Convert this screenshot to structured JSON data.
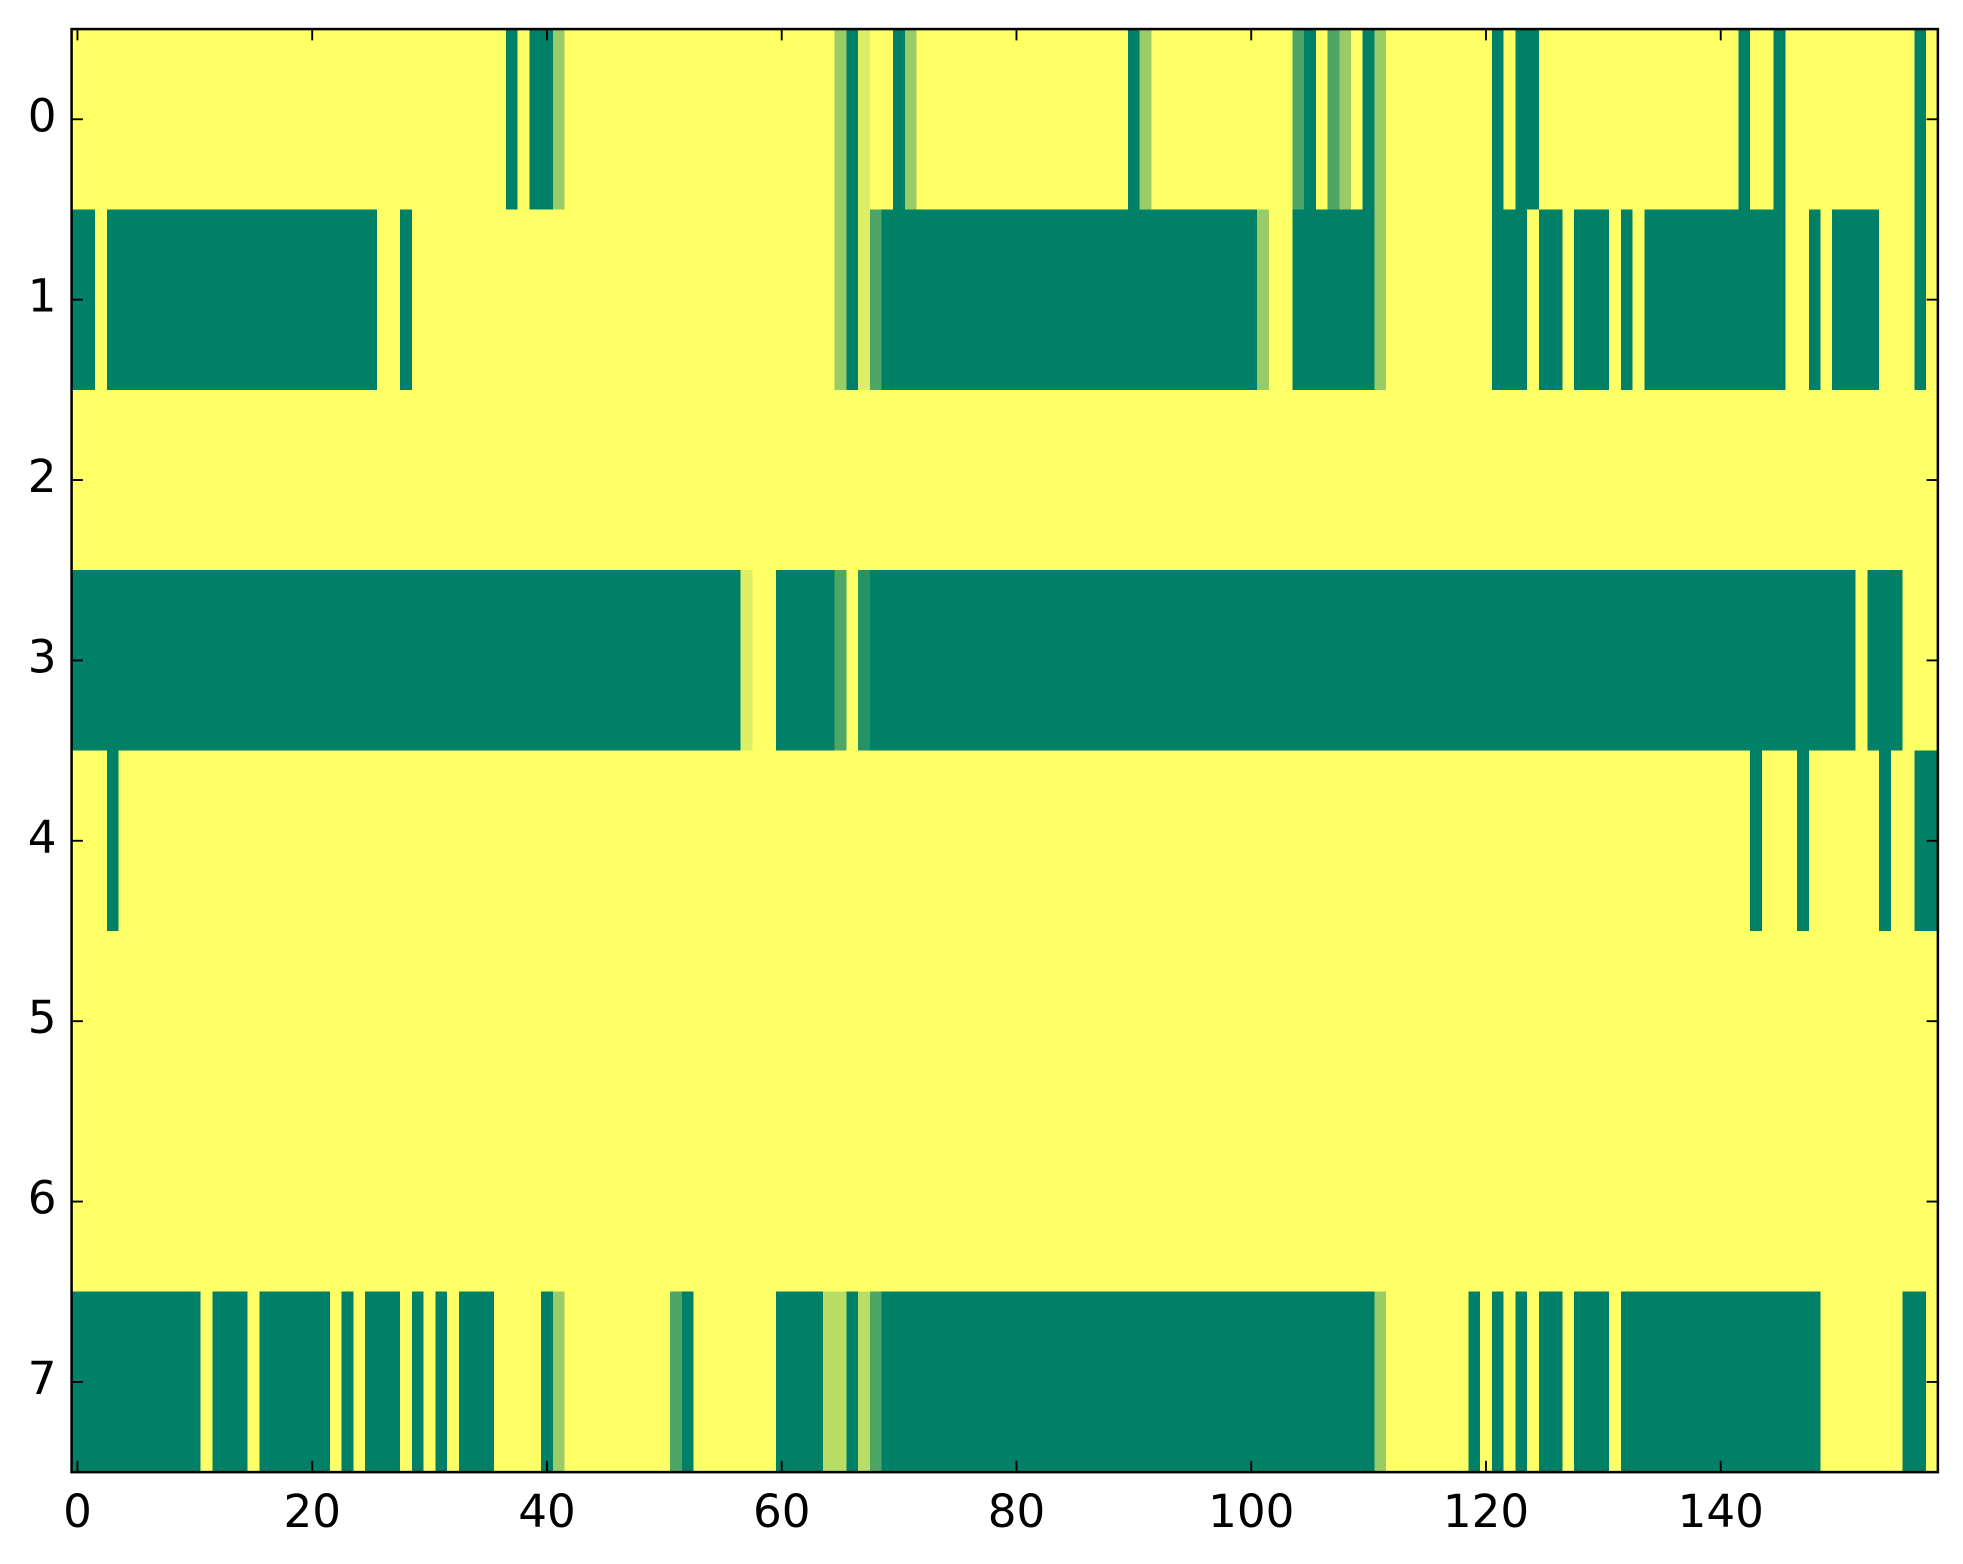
{
  "chart_data": {
    "type": "heatmap",
    "colormap": "summer",
    "xlim": [
      -0.5,
      158.5
    ],
    "ylim": [
      7.5,
      -0.5
    ],
    "xticks": [
      0,
      20,
      40,
      60,
      80,
      100,
      120,
      140
    ],
    "yticks": [
      0,
      1,
      2,
      3,
      4,
      5,
      6,
      7
    ],
    "z": [
      [
        1,
        1,
        1,
        1,
        1,
        1,
        1,
        1,
        1,
        1,
        1,
        1,
        1,
        1,
        1,
        1,
        1,
        1,
        1,
        1,
        1,
        1,
        1,
        1,
        1,
        1,
        1,
        1,
        1,
        1,
        1,
        1,
        1,
        1,
        1,
        1,
        1,
        0,
        1,
        0,
        0,
        0.6,
        1,
        1,
        1,
        1,
        1,
        1,
        1,
        1,
        1,
        1,
        1,
        1,
        1,
        1,
        1,
        1,
        1,
        1,
        1,
        1,
        1,
        1,
        1,
        0.6,
        0,
        0.87,
        1,
        1,
        0,
        0.6,
        1,
        1,
        1,
        1,
        1,
        1,
        1,
        1,
        1,
        1,
        1,
        1,
        1,
        1,
        1,
        1,
        1,
        1,
        0,
        0.6,
        1,
        1,
        1,
        1,
        1,
        1,
        1,
        1,
        1,
        1,
        1,
        1,
        0.3,
        0,
        1,
        0.3,
        0.6,
        1,
        0,
        0.6,
        1,
        1,
        1,
        1,
        1,
        1,
        1,
        1,
        1,
        0,
        1,
        0,
        0,
        1,
        1,
        1,
        1,
        1,
        1,
        1,
        1,
        1,
        1,
        1,
        1,
        1,
        1,
        1,
        1,
        1,
        0,
        1,
        1,
        0,
        1,
        1,
        1,
        1,
        1,
        1,
        1,
        1,
        1,
        1,
        1,
        0,
        1
      ],
      [
        0,
        0,
        1,
        0,
        0,
        0,
        0,
        0,
        0,
        0,
        0,
        0,
        0,
        0,
        0,
        0,
        0,
        0,
        0,
        0,
        0,
        0,
        0,
        0,
        0,
        0,
        1,
        1,
        0,
        1,
        1,
        1,
        1,
        1,
        1,
        1,
        1,
        1,
        1,
        1,
        1,
        1,
        1,
        1,
        1,
        1,
        1,
        1,
        1,
        1,
        1,
        1,
        1,
        1,
        1,
        1,
        1,
        1,
        1,
        1,
        1,
        1,
        1,
        1,
        1,
        0.6,
        0,
        0.87,
        0.3,
        0,
        0,
        0,
        0,
        0,
        0,
        0,
        0,
        0,
        0,
        0,
        0,
        0,
        0,
        0,
        0,
        0,
        0,
        0,
        0,
        0,
        0,
        0,
        0,
        0,
        0,
        0,
        0,
        0,
        0,
        0,
        0,
        0.6,
        1,
        1,
        0,
        0,
        0,
        0,
        0,
        0,
        0,
        0.6,
        1,
        1,
        1,
        1,
        1,
        1,
        1,
        1,
        1,
        0,
        0,
        0,
        1,
        0,
        0,
        1,
        0,
        0,
        0,
        1,
        0,
        1,
        0,
        0,
        0,
        0,
        0,
        0,
        0,
        0,
        0,
        0,
        0,
        0,
        1,
        1,
        0,
        1,
        0,
        0,
        0,
        0,
        1,
        1,
        1,
        0,
        1
      ],
      [
        1,
        1,
        1,
        1,
        1,
        1,
        1,
        1,
        1,
        1,
        1,
        1,
        1,
        1,
        1,
        1,
        1,
        1,
        1,
        1,
        1,
        1,
        1,
        1,
        1,
        1,
        1,
        1,
        1,
        1,
        1,
        1,
        1,
        1,
        1,
        1,
        1,
        1,
        1,
        1,
        1,
        1,
        1,
        1,
        1,
        1,
        1,
        1,
        1,
        1,
        1,
        1,
        1,
        1,
        1,
        1,
        1,
        1,
        1,
        1,
        1,
        1,
        1,
        1,
        1,
        1,
        1,
        1,
        1,
        1,
        1,
        1,
        1,
        1,
        1,
        1,
        1,
        1,
        1,
        1,
        1,
        1,
        1,
        1,
        1,
        1,
        1,
        1,
        1,
        1,
        1,
        1,
        1,
        1,
        1,
        1,
        1,
        1,
        1,
        1,
        1,
        1,
        1,
        1,
        1,
        1,
        1,
        1,
        1,
        1,
        1,
        1,
        1,
        1,
        1,
        1,
        1,
        1,
        1,
        1,
        1,
        1,
        1,
        1,
        1,
        1,
        1,
        1,
        1,
        1,
        1,
        1,
        1,
        1,
        1,
        1,
        1,
        1,
        1,
        1,
        1,
        1,
        1,
        1,
        1,
        1,
        1,
        1,
        1,
        1,
        1,
        1,
        1,
        1,
        1,
        1,
        1,
        1,
        1
      ],
      [
        0,
        0,
        0,
        0,
        0,
        0,
        0,
        0,
        0,
        0,
        0,
        0,
        0,
        0,
        0,
        0,
        0,
        0,
        0,
        0,
        0,
        0,
        0,
        0,
        0,
        0,
        0,
        0,
        0,
        0,
        0,
        0,
        0,
        0,
        0,
        0,
        0,
        0,
        0,
        0,
        0,
        0,
        0,
        0,
        0,
        0,
        0,
        0,
        0,
        0,
        0,
        0,
        0,
        0,
        0,
        0,
        0,
        0.87,
        1,
        1,
        0,
        0,
        0,
        0,
        0,
        0.3,
        1,
        0.15,
        0,
        0,
        0,
        0,
        0,
        0,
        0,
        0,
        0,
        0,
        0,
        0,
        0,
        0,
        0,
        0,
        0,
        0,
        0,
        0,
        0,
        0,
        0,
        0,
        0,
        0,
        0,
        0,
        0,
        0,
        0,
        0,
        0,
        0,
        0,
        0,
        0,
        0,
        0,
        0,
        0,
        0,
        0,
        0,
        0,
        0,
        0,
        0,
        0,
        0,
        0,
        0,
        0,
        0,
        0,
        0,
        0,
        0,
        0,
        0,
        0,
        0,
        0,
        0,
        0,
        0,
        0,
        0,
        0,
        0,
        0,
        0,
        0,
        0,
        0,
        0,
        0,
        0,
        0,
        0,
        0,
        0,
        0,
        0,
        1,
        0,
        0,
        0,
        1,
        1,
        1
      ],
      [
        1,
        1,
        1,
        0,
        1,
        1,
        1,
        1,
        1,
        1,
        1,
        1,
        1,
        1,
        1,
        1,
        1,
        1,
        1,
        1,
        1,
        1,
        1,
        1,
        1,
        1,
        1,
        1,
        1,
        1,
        1,
        1,
        1,
        1,
        1,
        1,
        1,
        1,
        1,
        1,
        1,
        1,
        1,
        1,
        1,
        1,
        1,
        1,
        1,
        1,
        1,
        1,
        1,
        1,
        1,
        1,
        1,
        1,
        1,
        1,
        1,
        1,
        1,
        1,
        1,
        1,
        1,
        1,
        1,
        1,
        1,
        1,
        1,
        1,
        1,
        1,
        1,
        1,
        1,
        1,
        1,
        1,
        1,
        1,
        1,
        1,
        1,
        1,
        1,
        1,
        1,
        1,
        1,
        1,
        1,
        1,
        1,
        1,
        1,
        1,
        1,
        1,
        1,
        1,
        1,
        1,
        1,
        1,
        1,
        1,
        1,
        1,
        1,
        1,
        1,
        1,
        1,
        1,
        1,
        1,
        1,
        1,
        1,
        1,
        1,
        1,
        1,
        1,
        1,
        1,
        1,
        1,
        1,
        1,
        1,
        1,
        1,
        1,
        1,
        1,
        1,
        1,
        1,
        0,
        1,
        1,
        1,
        0,
        1,
        1,
        1,
        1,
        1,
        1,
        0,
        1,
        1,
        0,
        0
      ],
      [
        1,
        1,
        1,
        1,
        1,
        1,
        1,
        1,
        1,
        1,
        1,
        1,
        1,
        1,
        1,
        1,
        1,
        1,
        1,
        1,
        1,
        1,
        1,
        1,
        1,
        1,
        1,
        1,
        1,
        1,
        1,
        1,
        1,
        1,
        1,
        1,
        1,
        1,
        1,
        1,
        1,
        1,
        1,
        1,
        1,
        1,
        1,
        1,
        1,
        1,
        1,
        1,
        1,
        1,
        1,
        1,
        1,
        1,
        1,
        1,
        1,
        1,
        1,
        1,
        1,
        1,
        1,
        1,
        1,
        1,
        1,
        1,
        1,
        1,
        1,
        1,
        1,
        1,
        1,
        1,
        1,
        1,
        1,
        1,
        1,
        1,
        1,
        1,
        1,
        1,
        1,
        1,
        1,
        1,
        1,
        1,
        1,
        1,
        1,
        1,
        1,
        1,
        1,
        1,
        1,
        1,
        1,
        1,
        1,
        1,
        1,
        1,
        1,
        1,
        1,
        1,
        1,
        1,
        1,
        1,
        1,
        1,
        1,
        1,
        1,
        1,
        1,
        1,
        1,
        1,
        1,
        1,
        1,
        1,
        1,
        1,
        1,
        1,
        1,
        1,
        1,
        1,
        1,
        1,
        1,
        1,
        1,
        1,
        1,
        1,
        1,
        1,
        1,
        1,
        1,
        1,
        1,
        1,
        1
      ],
      [
        1,
        1,
        1,
        1,
        1,
        1,
        1,
        1,
        1,
        1,
        1,
        1,
        1,
        1,
        1,
        1,
        1,
        1,
        1,
        1,
        1,
        1,
        1,
        1,
        1,
        1,
        1,
        1,
        1,
        1,
        1,
        1,
        1,
        1,
        1,
        1,
        1,
        1,
        1,
        1,
        1,
        1,
        1,
        1,
        1,
        1,
        1,
        1,
        1,
        1,
        1,
        1,
        1,
        1,
        1,
        1,
        1,
        1,
        1,
        1,
        1,
        1,
        1,
        1,
        1,
        1,
        1,
        1,
        1,
        1,
        1,
        1,
        1,
        1,
        1,
        1,
        1,
        1,
        1,
        1,
        1,
        1,
        1,
        1,
        1,
        1,
        1,
        1,
        1,
        1,
        1,
        1,
        1,
        1,
        1,
        1,
        1,
        1,
        1,
        1,
        1,
        1,
        1,
        1,
        1,
        1,
        1,
        1,
        1,
        1,
        1,
        1,
        1,
        1,
        1,
        1,
        1,
        1,
        1,
        1,
        1,
        1,
        1,
        1,
        1,
        1,
        1,
        1,
        1,
        1,
        1,
        1,
        1,
        1,
        1,
        1,
        1,
        1,
        1,
        1,
        1,
        1,
        1,
        1,
        1,
        1,
        1,
        1,
        1,
        1,
        1,
        1,
        1,
        1,
        1,
        1,
        1,
        1,
        1
      ],
      [
        0,
        0,
        0,
        0,
        0,
        0,
        0,
        0,
        0,
        0,
        0,
        1,
        0,
        0,
        0,
        1,
        0,
        0,
        0,
        0,
        0,
        0,
        1,
        0,
        1,
        0,
        0,
        0,
        1,
        0,
        1,
        0,
        1,
        0,
        0,
        0,
        1,
        1,
        1,
        1,
        0,
        0.6,
        1,
        1,
        1,
        1,
        1,
        1,
        1,
        1,
        1,
        0.3,
        0,
        1,
        1,
        1,
        1,
        1,
        1,
        1,
        0,
        0,
        0,
        0,
        0.73,
        0.73,
        0,
        0.73,
        0.3,
        0,
        0,
        0,
        0,
        0,
        0,
        0,
        0,
        0,
        0,
        0,
        0,
        0,
        0,
        0,
        0,
        0,
        0,
        0,
        0,
        0,
        0,
        0,
        0,
        0,
        0,
        0,
        0,
        0,
        0,
        0,
        0,
        0,
        0,
        0,
        0,
        0,
        0,
        0,
        0,
        0,
        0,
        0.6,
        1,
        1,
        1,
        1,
        1,
        1,
        1,
        0,
        1,
        0,
        1,
        0,
        1,
        0,
        0,
        1,
        0,
        0,
        0,
        1,
        0,
        0,
        0,
        0,
        0,
        0,
        0,
        0,
        0,
        0,
        0,
        0,
        0,
        0,
        0,
        0,
        0,
        1,
        1,
        1,
        1,
        1,
        1,
        1,
        0,
        0,
        1
      ]
    ]
  }
}
